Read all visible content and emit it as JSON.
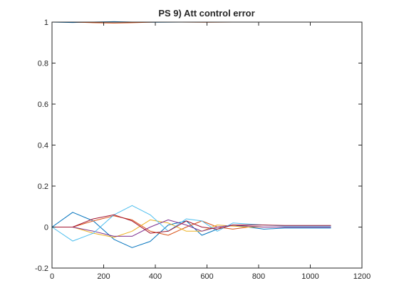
{
  "chart_data": {
    "type": "line",
    "title": "PS 9) Att control error",
    "xlabel": "",
    "ylabel": "",
    "xlim": [
      0,
      1200
    ],
    "ylim": [
      -0.2,
      1.0
    ],
    "xticks": [
      0,
      200,
      400,
      600,
      800,
      1000,
      1200
    ],
    "yticks": [
      -0.2,
      0,
      0.2,
      0.4,
      0.6,
      0.8,
      1
    ],
    "xtick_labels": [
      "0",
      "200",
      "400",
      "600",
      "800",
      "1000",
      "1200"
    ],
    "ytick_labels": [
      "-0.2",
      "0",
      "0.2",
      "0.4",
      "0.6",
      "0.8",
      "1"
    ],
    "grid": false,
    "legend": "none",
    "series": [
      {
        "color": "#0072BD",
        "x": [
          0,
          80,
          160,
          240,
          310,
          380,
          450,
          520,
          580,
          640,
          700,
          760,
          820,
          900,
          1000,
          1080
        ],
        "y": [
          0,
          0.072,
          0.03,
          -0.06,
          -0.1,
          -0.07,
          0.01,
          0.03,
          -0.04,
          -0.01,
          0.01,
          0.0,
          -0.01,
          -0.005,
          -0.005,
          -0.005
        ]
      },
      {
        "color": "#D95319",
        "x": [
          0,
          80,
          160,
          240,
          310,
          380,
          450,
          520,
          580,
          640,
          700,
          760,
          820,
          900,
          1000,
          1080
        ],
        "y": [
          0,
          0.0,
          0.03,
          0.055,
          0.035,
          -0.02,
          -0.04,
          0.0,
          0.03,
          0.0,
          -0.01,
          0.0,
          0.0,
          0.0,
          0.0,
          0.0
        ]
      },
      {
        "color": "#EDB120",
        "x": [
          0,
          80,
          160,
          240,
          310,
          380,
          450,
          520,
          580,
          640,
          700,
          760,
          820,
          900,
          1000,
          1080
        ],
        "y": [
          0,
          0.0,
          -0.03,
          -0.05,
          -0.02,
          0.035,
          0.02,
          -0.02,
          -0.02,
          0.01,
          0.005,
          0.0,
          0.0,
          0.0,
          0.0,
          0.0
        ]
      },
      {
        "color": "#7E2F8E",
        "x": [
          0,
          80,
          160,
          240,
          310,
          380,
          450,
          520,
          580,
          640,
          700,
          760,
          820,
          900,
          1000,
          1080
        ],
        "y": [
          0,
          0.0,
          -0.02,
          -0.045,
          -0.045,
          0.0,
          0.035,
          0.01,
          -0.02,
          0.0,
          0.01,
          0.005,
          0.0,
          0.0,
          0.0,
          0.0
        ]
      },
      {
        "color": "#4DBEEE",
        "x": [
          0,
          80,
          160,
          240,
          310,
          380,
          450,
          520,
          580,
          640,
          700,
          760,
          820,
          900,
          1000,
          1080
        ],
        "y": [
          0,
          -0.068,
          -0.03,
          0.06,
          0.105,
          0.06,
          -0.02,
          0.04,
          0.03,
          -0.02,
          0.02,
          0.015,
          0.01,
          0.005,
          0.005,
          0.005
        ]
      },
      {
        "color": "#A2142F",
        "x": [
          0,
          80,
          160,
          240,
          310,
          380,
          450,
          520,
          580,
          640,
          700,
          760,
          820,
          900,
          1000,
          1080
        ],
        "y": [
          0,
          0.0,
          0.04,
          0.06,
          0.03,
          -0.03,
          -0.02,
          0.03,
          0.0,
          -0.01,
          0.01,
          0.01,
          0.01,
          0.008,
          0.008,
          0.008
        ]
      },
      {
        "color": "#0072BD",
        "x": [
          0,
          80,
          160,
          240,
          310,
          400,
          500,
          600,
          700,
          800,
          900,
          1000,
          1080
        ],
        "y": [
          1.0,
          0.998,
          1.0,
          1.002,
          1.0,
          0.999,
          1.0,
          1.0,
          1.0,
          1.0,
          1.0,
          1.0,
          1.0
        ]
      },
      {
        "color": "#D95319",
        "x": [
          0,
          80,
          160,
          240,
          310,
          400,
          500,
          600,
          700,
          800,
          900,
          1000,
          1080
        ],
        "y": [
          1.0,
          1.0,
          0.997,
          0.995,
          0.997,
          1.0,
          1.0,
          0.999,
          1.0,
          1.0,
          1.0,
          1.0,
          1.0
        ]
      }
    ]
  }
}
